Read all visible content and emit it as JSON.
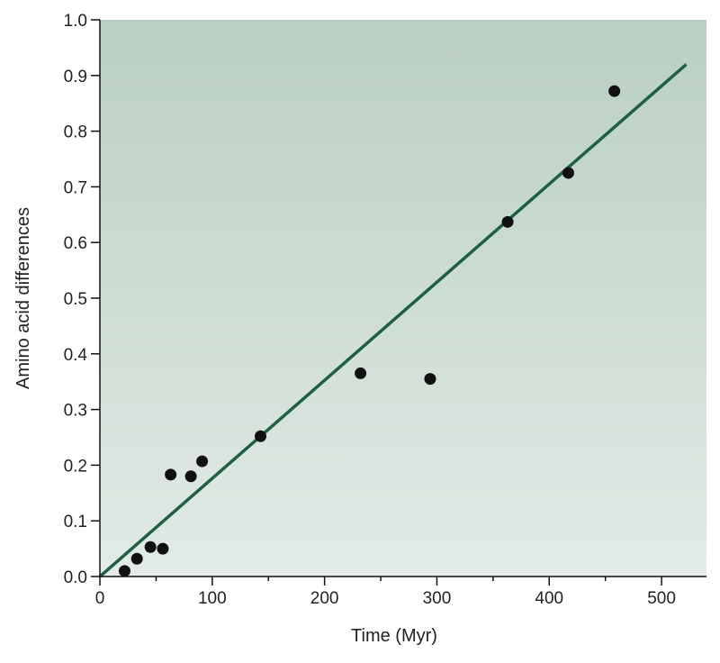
{
  "chart_data": {
    "type": "scatter",
    "xlabel": "Time (Myr)",
    "ylabel": "Amino acid differences",
    "xlim": [
      0,
      540
    ],
    "ylim": [
      0,
      1.0
    ],
    "x_ticks": [
      "0",
      "100",
      "200",
      "300",
      "400",
      "500"
    ],
    "y_ticks": [
      "0.0",
      "0.1",
      "0.2",
      "0.3",
      "0.4",
      "0.5",
      "0.6",
      "0.7",
      "0.8",
      "0.9",
      "1.0"
    ],
    "grid": false,
    "background": "gradient (#b9cfc2 top to #e2ebe6 bottom)",
    "series": [
      {
        "type": "scatter",
        "color": "#111111",
        "points": [
          [
            22,
            0.01
          ],
          [
            33,
            0.032
          ],
          [
            45,
            0.053
          ],
          [
            56,
            0.05
          ],
          [
            63,
            0.183
          ],
          [
            81,
            0.18
          ],
          [
            91,
            0.207
          ],
          [
            143,
            0.252
          ],
          [
            232,
            0.365
          ],
          [
            294,
            0.355
          ],
          [
            363,
            0.637
          ],
          [
            417,
            0.725
          ],
          [
            458,
            0.872
          ]
        ]
      },
      {
        "type": "line",
        "color": "#1f5f45",
        "points": [
          [
            0,
            0.0
          ],
          [
            522,
            0.92
          ]
        ]
      }
    ]
  },
  "colors": {
    "bg_top": "#b9cfc2",
    "bg_bottom": "#e2ebe6",
    "fit_line": "#1f5f45",
    "points": "#111111",
    "axis": "#111111"
  }
}
